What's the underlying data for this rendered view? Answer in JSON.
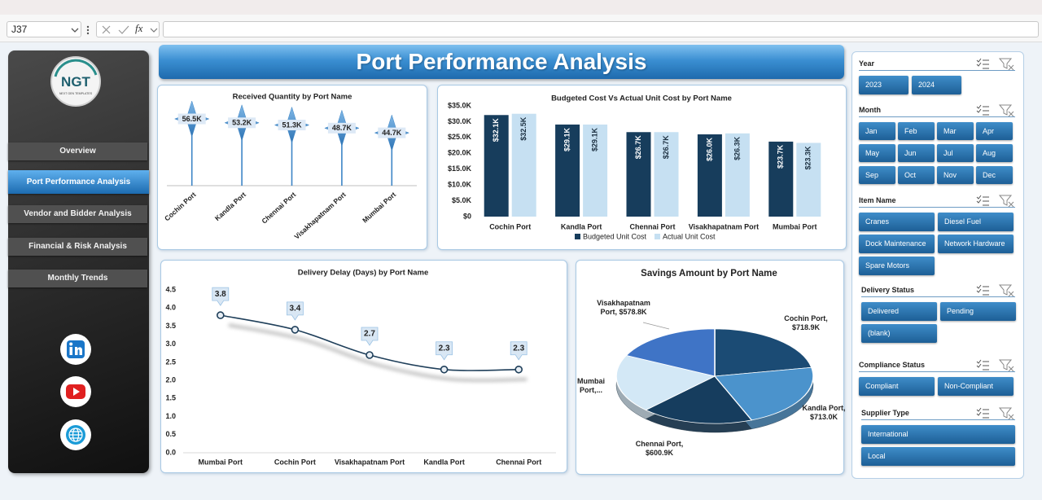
{
  "formula_bar": {
    "name_box": "J37",
    "function_icon": "fx"
  },
  "header": {
    "title": "Port Performance Analysis"
  },
  "sidebar": {
    "logo": "NGT",
    "logo_subtitle": "NEXT GEN TEMPLATES",
    "nav": [
      {
        "label": "Overview",
        "selected": false
      },
      {
        "label": "Port Performance Analysis",
        "selected": true
      },
      {
        "label": "Vendor and Bidder Analysis",
        "selected": false
      },
      {
        "label": "Financial & Risk Analysis",
        "selected": false
      },
      {
        "label": "Monthly Trends",
        "selected": false
      }
    ]
  },
  "chart_data": [
    {
      "type": "lollipop",
      "title": "Received Quantity by Port Name",
      "categories": [
        "Cochin Port",
        "Kandla Port",
        "Chennai Port",
        "Visakhapatnam Port",
        "Mumbai Port"
      ],
      "values": [
        56.5,
        53.2,
        51.3,
        48.7,
        44.7
      ],
      "value_labels": [
        "56.5K",
        "53.2K",
        "51.3K",
        "48.7K",
        "44.7K"
      ],
      "color": "#3d85c6"
    },
    {
      "type": "bar",
      "title": "Budgeted  Cost Vs Actual Unit Cost by Port Name",
      "categories": [
        "Cochin Port",
        "Kandla Port",
        "Chennai Port",
        "Visakhapatnam Port",
        "Mumbai Port"
      ],
      "series": [
        {
          "name": "Budgeted Unit Cost",
          "color": "#173d5c",
          "values": [
            32100,
            29100,
            26700,
            26000,
            23700
          ],
          "value_labels": [
            "$32.1K",
            "$29.1K",
            "$26.7K",
            "$26.0K",
            "$23.7K"
          ]
        },
        {
          "name": "Actual Unit Cost",
          "color": "#c6e0f2",
          "values": [
            32500,
            29100,
            26700,
            26300,
            23300
          ],
          "value_labels": [
            "$32.5K",
            "$29.1K",
            "$26.7K",
            "$26.3K",
            "$23.3K"
          ]
        }
      ],
      "ylim": [
        0,
        35000
      ],
      "yticks": [
        {
          "value": 0,
          "label": "$0"
        },
        {
          "value": 5000,
          "label": "$5.0K"
        },
        {
          "value": 10000,
          "label": "$10.0K"
        },
        {
          "value": 15000,
          "label": "$15.0K"
        },
        {
          "value": 20000,
          "label": "$20.0K"
        },
        {
          "value": 25000,
          "label": "$25.0K"
        },
        {
          "value": 30000,
          "label": "$30.0K"
        },
        {
          "value": 35000,
          "label": "$35.0K"
        }
      ],
      "legend": "bottom"
    },
    {
      "type": "line",
      "title": "Delivery Delay (Days) by Port Name",
      "categories": [
        "Mumbai Port",
        "Cochin Port",
        "Visakhapatnam Port",
        "Kandla Port",
        "Chennai Port"
      ],
      "values": [
        3.8,
        3.4,
        2.7,
        2.3,
        2.3
      ],
      "color": "#1f3f5a",
      "ylim": [
        0,
        4.5
      ],
      "yticks": [
        {
          "value": 0,
          "label": "0.0"
        },
        0.5,
        {
          "value": 1,
          "label": "1.0"
        },
        1.5,
        {
          "value": 2,
          "label": "2.0"
        },
        2.5,
        {
          "value": 3,
          "label": "3.0"
        },
        3.5,
        {
          "value": 4,
          "label": "4.0"
        },
        4.5
      ]
    },
    {
      "type": "pie",
      "title": "Savings Amount by Port Name",
      "categories": [
        "Cochin Port",
        "Kandla Port",
        "Chennai Port",
        "Mumbai Port",
        "Visakhapatnam Port"
      ],
      "values": [
        718900,
        713000,
        600900,
        650000,
        578800
      ],
      "value_labels": [
        "Cochin Port, $718.9K",
        "Kandla Port, $713.0K",
        "Chennai Port, $600.9K",
        "Mumbai Port,...",
        "Visakhapatnam Port, $578.8K"
      ],
      "colors": [
        "#1b4b74",
        "#4b93cc",
        "#163d5e",
        "#d3e8f6",
        "#3f74c6"
      ]
    }
  ],
  "slicers": [
    {
      "title": "Year",
      "items": [
        "2023",
        "2024"
      ]
    },
    {
      "title": "Month",
      "items": [
        "Jan",
        "Feb",
        "Mar",
        "Apr",
        "May",
        "Jun",
        "Jul",
        "Aug",
        "Sep",
        "Oct",
        "Nov",
        "Dec"
      ]
    },
    {
      "title": "Item Name",
      "items": [
        "Cranes",
        "Diesel Fuel",
        "Dock Maintenance",
        "Network Hardware",
        "Spare Motors"
      ]
    },
    {
      "title": "Delivery Status",
      "items": [
        "Delivered",
        "Pending",
        "(blank)"
      ]
    },
    {
      "title": "Compliance Status",
      "items": [
        "Compliant",
        "Non-Compliant"
      ]
    },
    {
      "title": "Supplier Type",
      "items": [
        "International",
        "Local"
      ]
    }
  ]
}
